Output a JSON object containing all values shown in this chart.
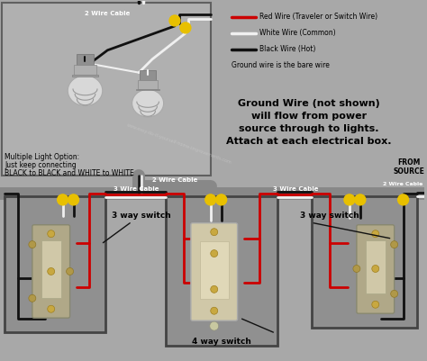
{
  "bg_color": "#a8a8a8",
  "legend": {
    "red_label": "Red Wire (Traveler or Switch Wire)",
    "white_label": "White Wire (Common)",
    "black_label": "Black Wire (Hot)",
    "ground_label": "Ground wire is the bare wire"
  },
  "ground_note_line1": "Ground Wire (not shown)",
  "ground_note_line2": "will flow from power",
  "ground_note_line3": "source through to lights.",
  "ground_note_line4": "Attach at each electrical box.",
  "multi_light_line1": "Multiple Light Option:",
  "multi_light_line2": "Just keep connecting",
  "multi_light_line3": "BLACK to BLACK and WHITE to WHITE",
  "cable_top_2wire": "2 Wire Cable",
  "cable_mid_2wire": "2 Wire Cable",
  "cable_left_3wire": "3 Wire Cable",
  "cable_right_3wire": "3 Wire Cable",
  "cable_source_2wire": "2 Wire Cable",
  "label_left_switch": "3 way switch",
  "label_center_switch": "4 way switch",
  "label_right_switch": "3 way switch",
  "from_source": "FROM\nSOURCE",
  "colors": {
    "red": "#cc0000",
    "white": "#f0f0f0",
    "black": "#111111",
    "yellow": "#e8c000",
    "gray_bg": "#a8a8a8",
    "light_box_bg": "#b0b0b0",
    "box_border": "#444444",
    "switch_box_bg": "#909090",
    "wire_gray": "#808080",
    "bulb_body": "#c8c8c8",
    "bulb_base": "#a0a0a0",
    "switch_gray": "#b0a890",
    "switch_cream": "#d8d0b0",
    "tan": "#c8a060",
    "dark_tan": "#a08040"
  }
}
